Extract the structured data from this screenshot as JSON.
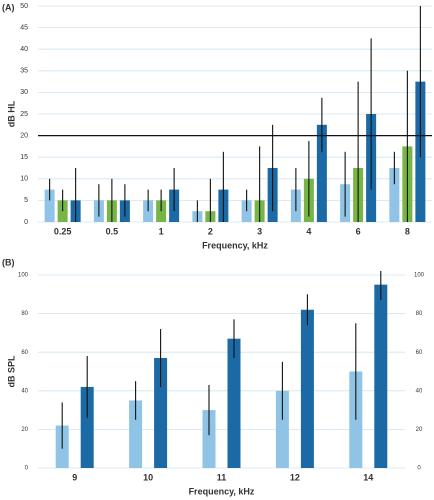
{
  "chart_data": [
    {
      "type": "bar",
      "label": "(A)",
      "y_label": "dB HL",
      "x_label": "Frequency, kHz",
      "categories": [
        "0.25",
        "0.5",
        "1",
        "2",
        "3",
        "4",
        "6",
        "8"
      ],
      "series": [
        {
          "color": "#8fc4e6",
          "values": [
            7.5,
            5,
            5,
            2.5,
            5,
            7.5,
            8.75,
            12.5
          ],
          "errors": [
            2.5,
            3.75,
            2.5,
            2.5,
            2.5,
            5,
            7.5,
            3.75
          ]
        },
        {
          "color": "#78b547",
          "values": [
            5,
            5,
            5,
            2.5,
            5,
            10,
            12.5,
            17.5
          ],
          "errors": [
            2.5,
            5,
            2.5,
            7.5,
            12.5,
            8.75,
            20,
            17.5
          ]
        },
        {
          "color": "#1b6aa6",
          "values": [
            5,
            5,
            7.5,
            7.5,
            12.5,
            22.5,
            25,
            32.5
          ],
          "errors": [
            7.5,
            3.75,
            5,
            8.75,
            10,
            6.25,
            17.5,
            17.5
          ]
        }
      ],
      "ylim": [
        0,
        50
      ],
      "yticks": [
        0,
        5,
        10,
        15,
        20,
        25,
        30,
        35,
        40,
        45,
        50
      ],
      "grid": true,
      "reference_line": 20
    },
    {
      "type": "bar",
      "label": "(B)",
      "y_label": "dB SPL",
      "x_label": "Frequency, kHz",
      "categories": [
        "9",
        "10",
        "11",
        "12",
        "14"
      ],
      "series": [
        {
          "color": "#8fc4e6",
          "values": [
            22,
            35,
            30,
            40,
            50
          ],
          "errors": [
            12,
            10,
            13,
            15,
            25
          ]
        },
        {
          "color": "#1b6aa6",
          "values": [
            42,
            57,
            67,
            82,
            95
          ],
          "errors": [
            16,
            15,
            10,
            8,
            8
          ]
        }
      ],
      "ylim": [
        0,
        100
      ],
      "yticks": [
        0,
        20,
        40,
        60,
        80,
        100
      ],
      "y2lim": [
        0,
        100
      ],
      "y2ticks": [
        0,
        20,
        40,
        60,
        80,
        100
      ],
      "grid": true
    }
  ]
}
